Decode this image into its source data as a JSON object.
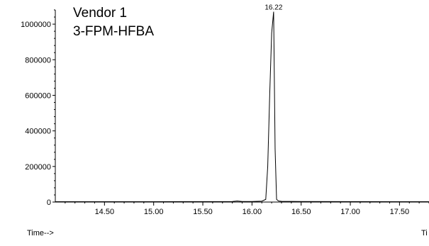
{
  "chart_data": {
    "type": "line",
    "title_lines": [
      "Vendor 1",
      "3-FPM-HFBA"
    ],
    "xlabel": "Time-->",
    "xlabel_right_fragment": "Ti",
    "ylabel": "",
    "xlim": [
      14.0,
      17.8
    ],
    "ylim": [
      0,
      1080000
    ],
    "x_ticks": [
      "14.50",
      "15.00",
      "15.50",
      "16.00",
      "16.50",
      "17.00",
      "17.50"
    ],
    "y_ticks": [
      "0",
      "200000",
      "400000",
      "600000",
      "800000",
      "1000000"
    ],
    "grid": false,
    "legend": "none",
    "peak_annotation": {
      "label": "16.22",
      "x": 16.22,
      "y": 1070000
    },
    "series": [
      {
        "x": [
          14.0,
          14.5,
          15.0,
          15.5,
          15.8,
          15.85,
          15.9,
          16.0,
          16.1,
          16.14,
          16.16,
          16.18,
          16.2,
          16.22,
          16.235,
          16.25,
          16.27,
          16.3,
          16.5,
          17.0,
          17.5,
          17.8
        ],
        "y": [
          2000,
          2000,
          2000,
          2500,
          3000,
          6000,
          3000,
          3000,
          5000,
          15000,
          200000,
          600000,
          950000,
          1070000,
          300000,
          15000,
          6000,
          4000,
          3000,
          2500,
          2000,
          2000
        ]
      }
    ],
    "colors": {
      "line": "#000000",
      "axis": "#000000",
      "text": "#000000"
    }
  }
}
